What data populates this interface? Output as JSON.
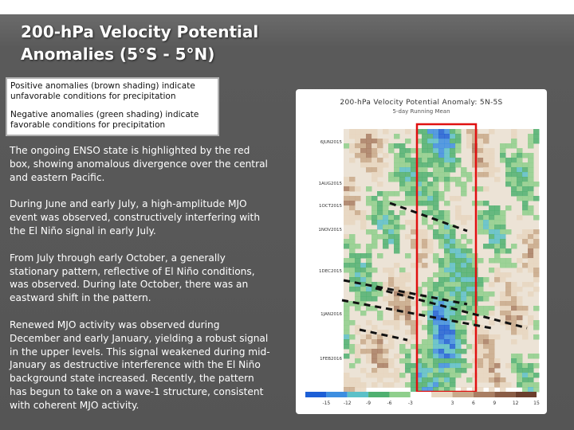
{
  "slide": {
    "title": "200-hPa Velocity Potential Anomalies (5°S - 5°N)",
    "legend": {
      "positive": "Positive anomalies (brown shading) indicate unfavorable conditions for precipitation",
      "negative": "Negative anomalies (green shading) indicate favorable conditions for precipitation"
    },
    "paragraphs": [
      "The ongoing ENSO state is highlighted by the red box, showing anomalous divergence over the central and eastern Pacific.",
      "During June and early July, a high-amplitude MJO event was observed, constructively interfering with the El Niño signal in early July.",
      "From July through early October, a generally stationary pattern, reflective of El Niño conditions, was observed. During late October, there was an eastward shift in the pattern.",
      "Renewed MJO activity was observed during December and early January, yielding a robust signal in the upper levels. This signal weakened during mid-January as destructive interference with the El Niño background state increased. Recently, the pattern has begun to take on a wave-1 structure, consistent with coherent MJO activity."
    ]
  },
  "figure": {
    "title": "200-hPa Velocity Potential Anomaly: 5N-5S",
    "subtitle": "5-day Running Mean",
    "date_labels": [
      "6JUN2015",
      "1AUG2015",
      "1OCT2015",
      "1NOV2015",
      "1DEC2015",
      "1JAN2016",
      "1FEB2016"
    ],
    "colorbar_labels": [
      "-15",
      "-12",
      "-9",
      "-6",
      "-3",
      "3",
      "6",
      "9",
      "12",
      "15"
    ],
    "colors": {
      "negative": [
        "#1d5fd6",
        "#3d8ee0",
        "#5cc0c8",
        "#4fb070",
        "#8fcf8c"
      ],
      "positive": [
        "#e8d6bf",
        "#c9a98a",
        "#a97e63",
        "#8a5c45",
        "#6b3e2d"
      ],
      "highlight_box": "#e01010"
    }
  }
}
